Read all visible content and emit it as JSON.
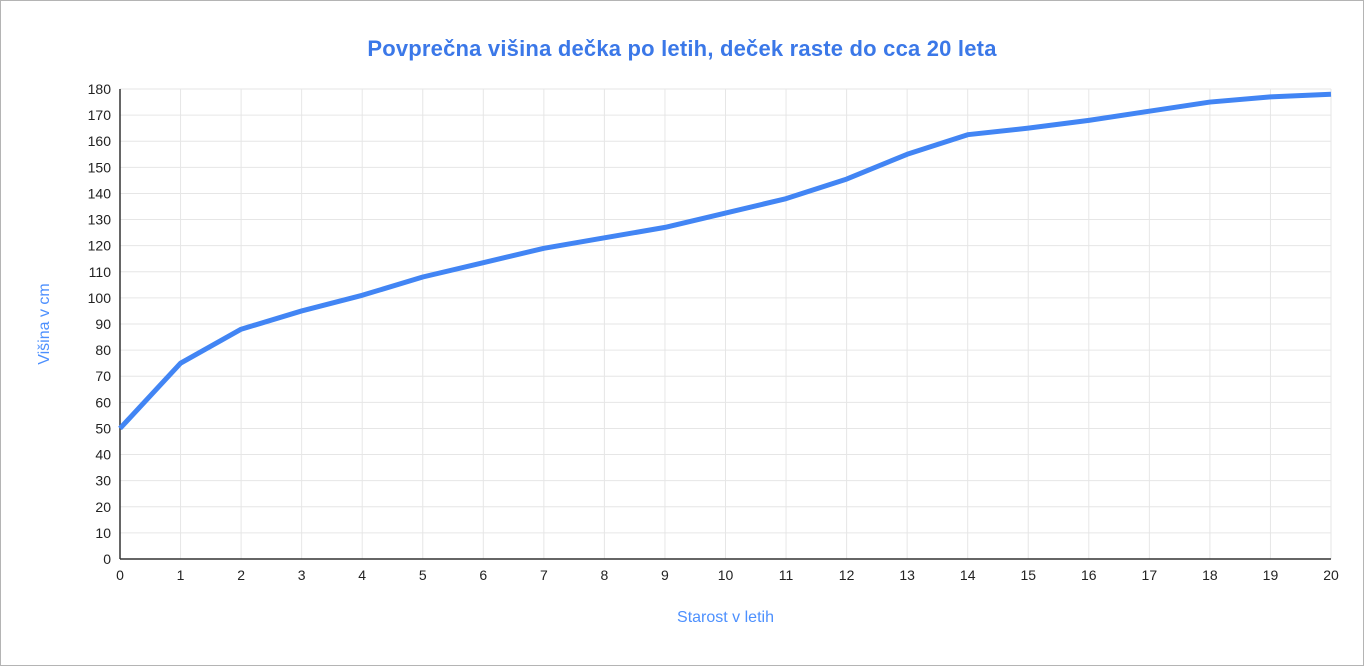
{
  "chart_data": {
    "type": "line",
    "title": "Povprečna višina dečka po letih, deček raste do cca 20 leta",
    "xlabel": "Starost v letih",
    "ylabel": "Višina v cm",
    "x": [
      0,
      1,
      2,
      3,
      4,
      5,
      6,
      7,
      8,
      9,
      10,
      11,
      12,
      13,
      14,
      15,
      16,
      17,
      18,
      19,
      20
    ],
    "values": [
      50,
      75,
      88,
      95,
      101,
      108,
      113.5,
      119,
      123,
      127,
      132.5,
      138,
      145.5,
      155,
      162.5,
      165,
      168,
      171.5,
      175,
      177,
      178
    ],
    "xlim": [
      0,
      20
    ],
    "ylim": [
      0,
      180
    ],
    "x_tick_step": 1,
    "y_tick_step": 10,
    "grid": true,
    "legend_position": "none",
    "x_tick_labels": [
      "0",
      "1",
      "2",
      "3",
      "4",
      "5",
      "6",
      "7",
      "8",
      "9",
      "10",
      "11",
      "12",
      "13",
      "14",
      "15",
      "16",
      "17",
      "18",
      "19",
      "20"
    ],
    "y_tick_labels": [
      "0",
      "10",
      "20",
      "30",
      "40",
      "50",
      "60",
      "70",
      "80",
      "90",
      "100",
      "110",
      "120",
      "130",
      "140",
      "150",
      "160",
      "170",
      "180"
    ]
  },
  "colors": {
    "line": "#4285F4",
    "title": "#3B78E8",
    "axis_title": "#4D90FE",
    "grid": "#E6E6E6",
    "axis": "#333333",
    "tick_label": "#222222",
    "background": "#FFFFFF"
  }
}
